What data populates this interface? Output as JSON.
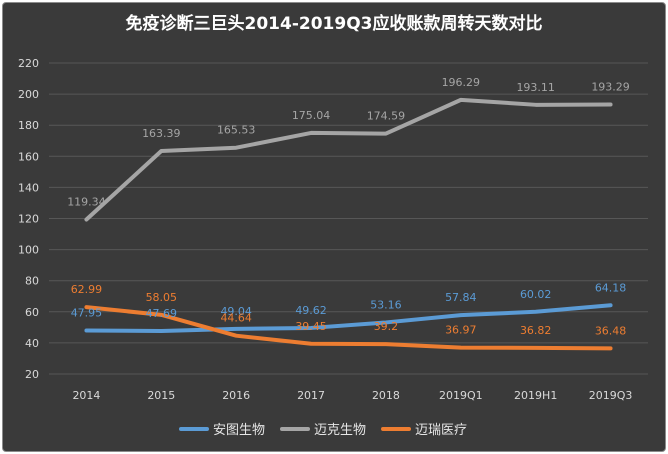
{
  "chart_data": {
    "type": "line",
    "title": "免疫诊断三巨头2014-2019Q3应收账款周转天数对比",
    "categories": [
      "2014",
      "2015",
      "2016",
      "2017",
      "2018",
      "2019Q1",
      "2019H1",
      "2019Q3"
    ],
    "y_ticks": [
      "20",
      "40",
      "60",
      "80",
      "100",
      "120",
      "140",
      "160",
      "180",
      "200",
      "220"
    ],
    "ylim": [
      20,
      220
    ],
    "grid": true,
    "legend_position": "bottom",
    "series": [
      {
        "name": "安图生物",
        "color": "#5b9bd5",
        "values": [
          47.95,
          47.69,
          49.04,
          49.62,
          53.16,
          57.84,
          60.02,
          64.18
        ],
        "labels": [
          "47.95",
          "47.69",
          "49.04",
          "49.62",
          "53.16",
          "57.84",
          "60.02",
          "64.18"
        ]
      },
      {
        "name": "迈克生物",
        "color": "#a5a5a5",
        "values": [
          119.34,
          163.39,
          165.53,
          175.04,
          174.59,
          196.29,
          193.11,
          193.29
        ],
        "labels": [
          "119.34",
          "163.39",
          "165.53",
          "175.04",
          "174.59",
          "196.29",
          "193.11",
          "193.29"
        ]
      },
      {
        "name": "迈瑞医疗",
        "color": "#ed7d31",
        "values": [
          62.99,
          58.05,
          44.64,
          39.45,
          39.2,
          36.97,
          36.82,
          36.48
        ],
        "labels": [
          "62.99",
          "58.05",
          "44.64",
          "39.45",
          "39.2",
          "36.97",
          "36.82",
          "36.48"
        ]
      }
    ]
  }
}
